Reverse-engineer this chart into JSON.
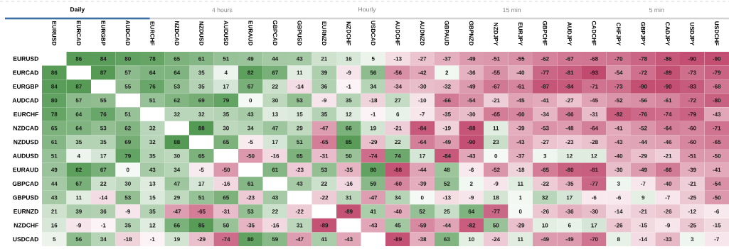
{
  "chart_data": {
    "type": "heatmap",
    "data_labels": true,
    "annotations": [
      "Daily",
      "4 hours",
      "Hourly",
      "15 min",
      "5 min"
    ],
    "categories": [
      "EURUSD",
      "EURCAD",
      "EURGBP",
      "AUDCAD",
      "EURCHF",
      "NZDCAD",
      "NZDUSD",
      "AUDUSD",
      "EURAUD",
      "GBPCAD",
      "GBPUSD",
      "EURNZD",
      "NZDCHF",
      "USDCAD",
      "AUDCHF",
      "AUDNZD",
      "GBPAUD",
      "GBPNZD",
      "NZDJPY",
      "EURJPY",
      "GBPCHF",
      "AUDJPY",
      "CADCHF",
      "CHFJPY",
      "GBPJPY",
      "CADJPY",
      "USDJPY",
      "USDCHF"
    ],
    "y_categories": [
      "EURUSD",
      "EURCAD",
      "EURGBP",
      "AUDCAD",
      "EURCHF",
      "NZDCAD",
      "NZDUSD",
      "AUDUSD",
      "EURAUD",
      "GBPCAD",
      "GBPUSD",
      "EURNZD",
      "NZDCHF",
      "USDCAD"
    ],
    "cells": [
      [
        null,
        86,
        84,
        80,
        78,
        65,
        61,
        51,
        49,
        44,
        43,
        21,
        16,
        5,
        -13,
        -27,
        -37,
        -49,
        -51,
        -55,
        -62,
        -67,
        -68,
        -70,
        -78,
        -86,
        -90,
        -90
      ],
      [
        86,
        null,
        87,
        57,
        64,
        64,
        35,
        4,
        82,
        67,
        11,
        39,
        -9,
        56,
        -56,
        -42,
        2,
        -36,
        -55,
        -40,
        -77,
        -81,
        -93,
        -54,
        -72,
        -89,
        -73,
        -79
      ],
      [
        84,
        87,
        null,
        55,
        76,
        53,
        35,
        17,
        67,
        22,
        -14,
        36,
        -1,
        34,
        -34,
        -30,
        -32,
        -49,
        -67,
        -61,
        -87,
        -84,
        -71,
        -73,
        -90,
        -90,
        -83,
        -68
      ],
      [
        80,
        57,
        55,
        null,
        51,
        62,
        69,
        79,
        0,
        30,
        53,
        -9,
        35,
        -18,
        27,
        -10,
        -66,
        -54,
        -21,
        -45,
        -41,
        -27,
        -45,
        -52,
        -56,
        -61,
        -72,
        -80
      ],
      [
        78,
        64,
        76,
        51,
        null,
        32,
        32,
        35,
        43,
        13,
        15,
        35,
        12,
        -1,
        6,
        -7,
        -35,
        -30,
        -65,
        -60,
        -34,
        -66,
        -31,
        -82,
        -76,
        -74,
        -79,
        -43
      ],
      [
        65,
        64,
        53,
        62,
        32,
        null,
        88,
        30,
        34,
        47,
        29,
        -47,
        66,
        19,
        -21,
        -84,
        -19,
        -88,
        11,
        -39,
        -53,
        -48,
        -64,
        -41,
        -52,
        -64,
        -60,
        -71
      ],
      [
        61,
        35,
        35,
        69,
        32,
        88,
        null,
        65,
        -5,
        17,
        51,
        -65,
        85,
        -29,
        22,
        -64,
        -49,
        -90,
        23,
        -43,
        -27,
        -23,
        -28,
        -43,
        -44,
        -46,
        -60,
        -65
      ],
      [
        51,
        4,
        17,
        79,
        35,
        30,
        65,
        null,
        -50,
        -16,
        65,
        -31,
        50,
        -74,
        74,
        17,
        -84,
        -43,
        0,
        -37,
        3,
        12,
        12,
        -40,
        -29,
        -21,
        -51,
        -50
      ],
      [
        49,
        82,
        67,
        0,
        43,
        34,
        -5,
        -50,
        null,
        61,
        -23,
        53,
        -35,
        80,
        -88,
        -44,
        48,
        -6,
        -52,
        -18,
        -65,
        -80,
        -81,
        -30,
        -49,
        -66,
        -39,
        -41
      ],
      [
        44,
        67,
        22,
        30,
        13,
        47,
        17,
        -16,
        61,
        null,
        43,
        22,
        -16,
        59,
        -60,
        -39,
        52,
        2,
        -9,
        11,
        -22,
        -35,
        -77,
        3,
        -7,
        -40,
        -21,
        -54
      ],
      [
        43,
        11,
        -14,
        53,
        15,
        29,
        51,
        65,
        -23,
        43,
        null,
        -22,
        31,
        -47,
        34,
        0,
        -13,
        -9,
        18,
        1,
        32,
        17,
        -6,
        -6,
        9,
        -7,
        -25,
        -50
      ],
      [
        21,
        39,
        36,
        -9,
        35,
        -47,
        -65,
        -31,
        53,
        22,
        -22,
        null,
        -89,
        41,
        -40,
        52,
        25,
        64,
        -77,
        0,
        -26,
        -36,
        -30,
        -14,
        -21,
        -26,
        -12,
        -6
      ],
      [
        16,
        -9,
        -1,
        35,
        12,
        66,
        85,
        50,
        -35,
        -16,
        31,
        -89,
        null,
        -43,
        45,
        -59,
        -44,
        -82,
        50,
        -29,
        10,
        6,
        17,
        -26,
        -15,
        -9,
        -25,
        -15
      ],
      [
        5,
        56,
        34,
        -18,
        -1,
        19,
        -29,
        -74,
        80,
        59,
        -47,
        41,
        -43,
        null,
        -89,
        -38,
        63,
        10,
        -24,
        11,
        -49,
        -49,
        -70,
        8,
        -14,
        -33,
        3,
        -7
      ]
    ]
  }
}
